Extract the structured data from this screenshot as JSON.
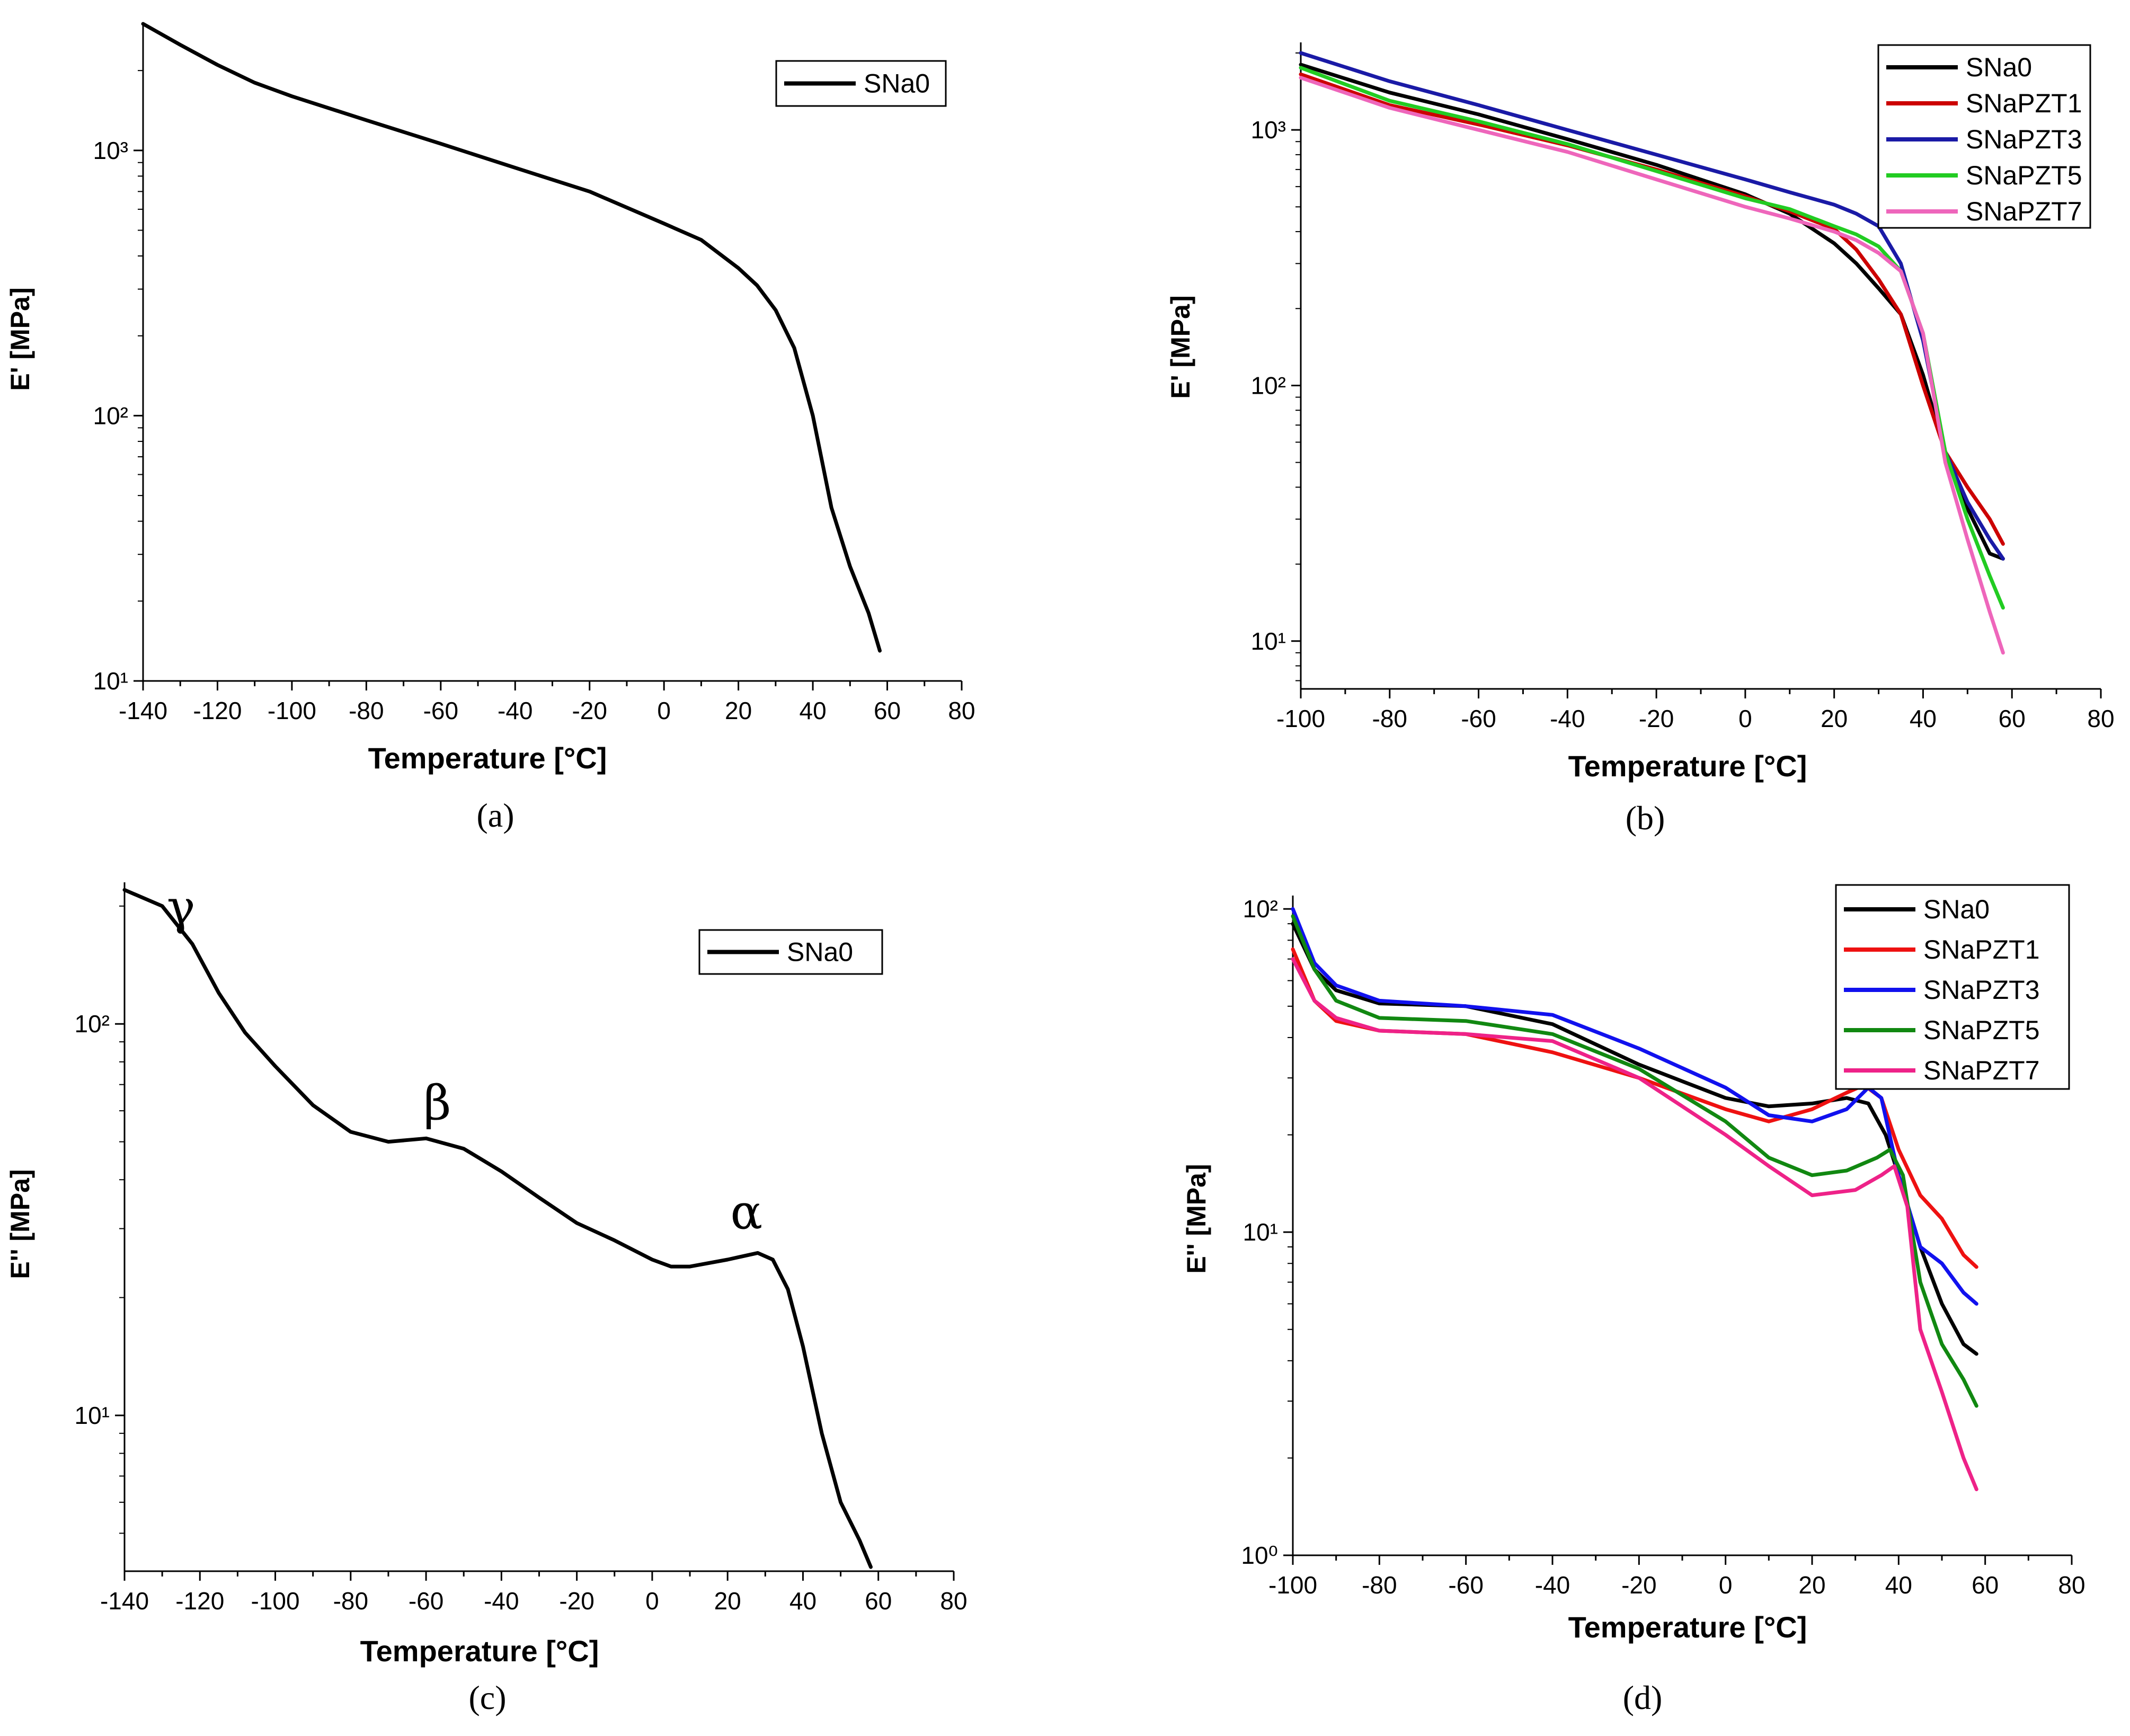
{
  "chart_data": [
    {
      "id": "a",
      "type": "line",
      "caption": "(a)",
      "xlabel": "Temperature [°C]",
      "ylabel": "E' [MPa]",
      "y_scale": "log",
      "xlim": [
        -140,
        80
      ],
      "ylim": [
        10,
        3000
      ],
      "x_ticks": [
        "-140",
        "-120",
        "-100",
        "-80",
        "-60",
        "-40",
        "-20",
        "0",
        "20",
        "40",
        "60",
        "80"
      ],
      "y_ticks": [
        {
          "value": 10,
          "label": "10¹"
        },
        {
          "value": 100,
          "label": "10²"
        },
        {
          "value": 1000,
          "label": "10³"
        }
      ],
      "legend_position": "top-right",
      "annotations": [],
      "series": [
        {
          "name": "SNa0",
          "color": "#000000",
          "points": [
            [
              -140,
              3000
            ],
            [
              -130,
              2500
            ],
            [
              -120,
              2100
            ],
            [
              -110,
              1800
            ],
            [
              -100,
              1600
            ],
            [
              -80,
              1300
            ],
            [
              -60,
              1060
            ],
            [
              -40,
              860
            ],
            [
              -20,
              700
            ],
            [
              0,
              530
            ],
            [
              10,
              460
            ],
            [
              20,
              360
            ],
            [
              25,
              310
            ],
            [
              30,
              250
            ],
            [
              35,
              180
            ],
            [
              40,
              100
            ],
            [
              45,
              45
            ],
            [
              50,
              27
            ],
            [
              55,
              18
            ],
            [
              58,
              13
            ]
          ]
        }
      ]
    },
    {
      "id": "b",
      "type": "line",
      "caption": "(b)",
      "xlabel": "Temperature [°C]",
      "ylabel": "E' [MPa]",
      "y_scale": "log",
      "xlim": [
        -100,
        80
      ],
      "ylim": [
        6.5,
        2200
      ],
      "x_ticks": [
        "-100",
        "-80",
        "-60",
        "-40",
        "-20",
        "0",
        "20",
        "40",
        "60",
        "80"
      ],
      "y_ticks": [
        {
          "value": 10,
          "label": "10¹"
        },
        {
          "value": 100,
          "label": "10²"
        },
        {
          "value": 1000,
          "label": "10³"
        }
      ],
      "legend_position": "top-right",
      "annotations": [],
      "series": [
        {
          "name": "SNa0",
          "color": "#000000",
          "points": [
            [
              -100,
              1800
            ],
            [
              -80,
              1400
            ],
            [
              -60,
              1150
            ],
            [
              -40,
              920
            ],
            [
              -20,
              730
            ],
            [
              0,
              560
            ],
            [
              10,
              470
            ],
            [
              20,
              360
            ],
            [
              25,
              300
            ],
            [
              30,
              240
            ],
            [
              35,
              190
            ],
            [
              40,
              110
            ],
            [
              45,
              55
            ],
            [
              50,
              33
            ],
            [
              55,
              22
            ],
            [
              58,
              21
            ]
          ]
        },
        {
          "name": "SNaPZT1",
          "color": "#cc0000",
          "points": [
            [
              -100,
              1650
            ],
            [
              -80,
              1250
            ],
            [
              -60,
              1050
            ],
            [
              -40,
              870
            ],
            [
              -20,
              700
            ],
            [
              0,
              550
            ],
            [
              10,
              480
            ],
            [
              20,
              410
            ],
            [
              25,
              340
            ],
            [
              30,
              260
            ],
            [
              35,
              190
            ],
            [
              40,
              100
            ],
            [
              45,
              55
            ],
            [
              50,
              40
            ],
            [
              55,
              30
            ],
            [
              58,
              24
            ]
          ]
        },
        {
          "name": "SNaPZT3",
          "color": "#1a1aa6",
          "points": [
            [
              -100,
              2000
            ],
            [
              -80,
              1550
            ],
            [
              -60,
              1250
            ],
            [
              -40,
              1000
            ],
            [
              -20,
              800
            ],
            [
              0,
              640
            ],
            [
              10,
              570
            ],
            [
              20,
              510
            ],
            [
              25,
              470
            ],
            [
              30,
              420
            ],
            [
              35,
              300
            ],
            [
              40,
              150
            ],
            [
              45,
              55
            ],
            [
              50,
              35
            ],
            [
              55,
              25
            ],
            [
              58,
              21
            ]
          ]
        },
        {
          "name": "SNaPZT5",
          "color": "#22cc22",
          "points": [
            [
              -100,
              1750
            ],
            [
              -80,
              1300
            ],
            [
              -60,
              1080
            ],
            [
              -40,
              880
            ],
            [
              -20,
              690
            ],
            [
              0,
              540
            ],
            [
              10,
              490
            ],
            [
              20,
              420
            ],
            [
              25,
              390
            ],
            [
              30,
              350
            ],
            [
              35,
              280
            ],
            [
              40,
              160
            ],
            [
              45,
              55
            ],
            [
              50,
              30
            ],
            [
              55,
              18
            ],
            [
              58,
              13.5
            ]
          ]
        },
        {
          "name": "SNaPZT7",
          "color": "#ee66bb",
          "points": [
            [
              -100,
              1600
            ],
            [
              -80,
              1220
            ],
            [
              -60,
              1000
            ],
            [
              -40,
              820
            ],
            [
              -20,
              640
            ],
            [
              0,
              500
            ],
            [
              10,
              450
            ],
            [
              20,
              400
            ],
            [
              25,
              370
            ],
            [
              30,
              330
            ],
            [
              35,
              280
            ],
            [
              40,
              160
            ],
            [
              45,
              50
            ],
            [
              50,
              25
            ],
            [
              55,
              13
            ],
            [
              58,
              9
            ]
          ]
        }
      ]
    },
    {
      "id": "c",
      "type": "line",
      "caption": "(c)",
      "xlabel": "Temperature [°C]",
      "ylabel": "E'' [MPa]",
      "y_scale": "log",
      "xlim": [
        -140,
        80
      ],
      "ylim": [
        4,
        230
      ],
      "x_ticks": [
        "-140",
        "-120",
        "-100",
        "-80",
        "-60",
        "-40",
        "-20",
        "0",
        "20",
        "40",
        "60",
        "80"
      ],
      "y_ticks": [
        {
          "value": 10,
          "label": "10¹"
        },
        {
          "value": 100,
          "label": "10²"
        }
      ],
      "legend_position": "top-right",
      "annotations": [
        {
          "text": "γ",
          "x": -125,
          "y": 180
        },
        {
          "text": "β",
          "x": -57,
          "y": 57
        },
        {
          "text": "α",
          "x": 25,
          "y": 30
        }
      ],
      "series": [
        {
          "name": "SNa0",
          "color": "#000000",
          "points": [
            [
              -140,
              220
            ],
            [
              -130,
              200
            ],
            [
              -122,
              160
            ],
            [
              -115,
              120
            ],
            [
              -108,
              95
            ],
            [
              -100,
              78
            ],
            [
              -90,
              62
            ],
            [
              -80,
              53
            ],
            [
              -70,
              50
            ],
            [
              -60,
              51
            ],
            [
              -50,
              48
            ],
            [
              -40,
              42
            ],
            [
              -30,
              36
            ],
            [
              -20,
              31
            ],
            [
              -10,
              28
            ],
            [
              0,
              25
            ],
            [
              5,
              24
            ],
            [
              10,
              24
            ],
            [
              20,
              25
            ],
            [
              28,
              26
            ],
            [
              32,
              25
            ],
            [
              36,
              21
            ],
            [
              40,
              15
            ],
            [
              45,
              9
            ],
            [
              50,
              6
            ],
            [
              55,
              4.8
            ],
            [
              58,
              4.1
            ]
          ]
        }
      ]
    },
    {
      "id": "d",
      "type": "line",
      "caption": "(d)",
      "xlabel": "Temperature [°C]",
      "ylabel": "E'' [MPa]",
      "y_scale": "log",
      "xlim": [
        -100,
        80
      ],
      "ylim": [
        1,
        110
      ],
      "x_ticks": [
        "-100",
        "-80",
        "-60",
        "-40",
        "-20",
        "0",
        "20",
        "40",
        "60",
        "80"
      ],
      "y_ticks": [
        {
          "value": 1,
          "label": "10⁰"
        },
        {
          "value": 10,
          "label": "10¹"
        },
        {
          "value": 100,
          "label": "10²"
        }
      ],
      "legend_position": "top-right",
      "annotations": [],
      "series": [
        {
          "name": "SNa0",
          "color": "#000000",
          "points": [
            [
              -100,
              90
            ],
            [
              -95,
              65
            ],
            [
              -90,
              56
            ],
            [
              -80,
              51
            ],
            [
              -60,
              50
            ],
            [
              -40,
              44
            ],
            [
              -20,
              33
            ],
            [
              0,
              26
            ],
            [
              10,
              24.5
            ],
            [
              20,
              25
            ],
            [
              28,
              26
            ],
            [
              33,
              25
            ],
            [
              37,
              20
            ],
            [
              40,
              15
            ],
            [
              45,
              9
            ],
            [
              50,
              6
            ],
            [
              55,
              4.5
            ],
            [
              58,
              4.2
            ]
          ]
        },
        {
          "name": "SNaPZT1",
          "color": "#ee1111",
          "points": [
            [
              -100,
              75
            ],
            [
              -95,
              52
            ],
            [
              -90,
              45
            ],
            [
              -80,
              42
            ],
            [
              -60,
              41
            ],
            [
              -40,
              36
            ],
            [
              -20,
              30
            ],
            [
              0,
              24
            ],
            [
              10,
              22
            ],
            [
              20,
              24
            ],
            [
              28,
              27
            ],
            [
              32,
              28.5
            ],
            [
              36,
              26
            ],
            [
              40,
              18
            ],
            [
              45,
              13
            ],
            [
              50,
              11
            ],
            [
              55,
              8.5
            ],
            [
              58,
              7.8
            ]
          ]
        },
        {
          "name": "SNaPZT3",
          "color": "#1111ee",
          "points": [
            [
              -100,
              100
            ],
            [
              -95,
              68
            ],
            [
              -90,
              58
            ],
            [
              -80,
              52
            ],
            [
              -60,
              50
            ],
            [
              -40,
              47
            ],
            [
              -20,
              37
            ],
            [
              0,
              28
            ],
            [
              10,
              23
            ],
            [
              20,
              22
            ],
            [
              28,
              24
            ],
            [
              33,
              28
            ],
            [
              36,
              26
            ],
            [
              40,
              15
            ],
            [
              45,
              9
            ],
            [
              50,
              8
            ],
            [
              55,
              6.5
            ],
            [
              58,
              6
            ]
          ]
        },
        {
          "name": "SNaPZT5",
          "color": "#118811",
          "points": [
            [
              -100,
              95
            ],
            [
              -95,
              65
            ],
            [
              -90,
              52
            ],
            [
              -80,
              46
            ],
            [
              -60,
              45
            ],
            [
              -40,
              41
            ],
            [
              -20,
              32
            ],
            [
              0,
              22
            ],
            [
              10,
              17
            ],
            [
              20,
              15
            ],
            [
              28,
              15.5
            ],
            [
              35,
              17
            ],
            [
              38,
              18
            ],
            [
              41,
              15
            ],
            [
              45,
              7
            ],
            [
              50,
              4.5
            ],
            [
              55,
              3.5
            ],
            [
              58,
              2.9
            ]
          ]
        },
        {
          "name": "SNaPZT7",
          "color": "#ee2288",
          "points": [
            [
              -100,
              70
            ],
            [
              -95,
              52
            ],
            [
              -90,
              46
            ],
            [
              -80,
              42
            ],
            [
              -60,
              41
            ],
            [
              -40,
              39
            ],
            [
              -20,
              30
            ],
            [
              0,
              20
            ],
            [
              10,
              16
            ],
            [
              20,
              13
            ],
            [
              30,
              13.5
            ],
            [
              36,
              15
            ],
            [
              39,
              16
            ],
            [
              42,
              12
            ],
            [
              45,
              5
            ],
            [
              50,
              3.2
            ],
            [
              55,
              2
            ],
            [
              58,
              1.6
            ]
          ]
        }
      ]
    }
  ]
}
